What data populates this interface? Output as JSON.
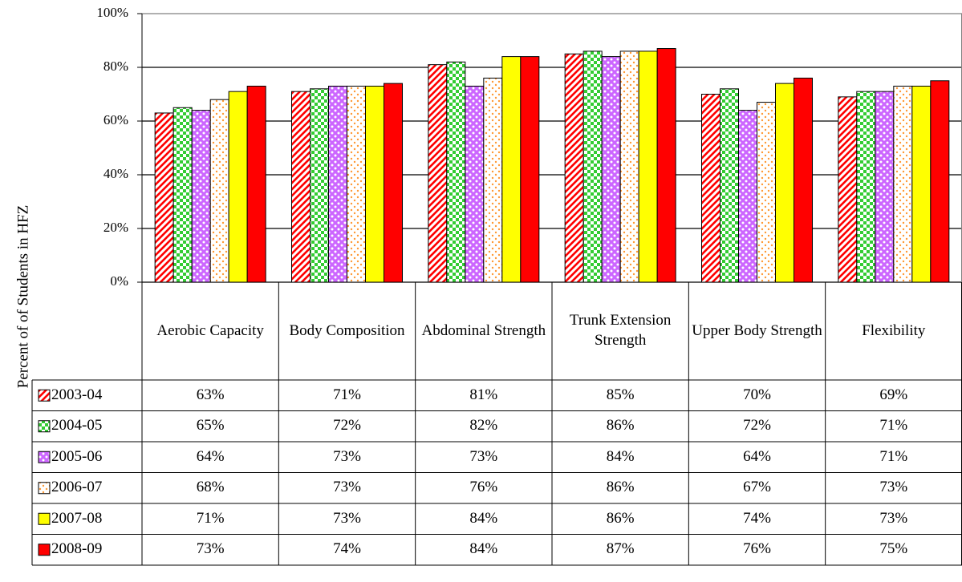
{
  "chart_data": {
    "type": "bar",
    "y_label": "Percent of of Students in HFZ",
    "categories": [
      "Aerobic Capacity",
      "Body Composition",
      "Abdominal Strength",
      "Trunk Extension Strength",
      "Upper Body Strength",
      "Flexibility"
    ],
    "series": [
      {
        "name": "2003-04",
        "color": "#ff0000",
        "values": [
          63,
          71,
          81,
          85,
          70,
          69
        ],
        "value_labels": [
          "63%",
          "71%",
          "81%",
          "85%",
          "70%",
          "69%"
        ]
      },
      {
        "name": "2004-05",
        "color": "#33cc33",
        "values": [
          65,
          72,
          82,
          86,
          72,
          71
        ],
        "value_labels": [
          "65%",
          "72%",
          "82%",
          "86%",
          "72%",
          "71%"
        ]
      },
      {
        "name": "2005-06",
        "color": "#cc66ff",
        "values": [
          64,
          73,
          73,
          84,
          64,
          71
        ],
        "value_labels": [
          "64%",
          "73%",
          "73%",
          "84%",
          "64%",
          "71%"
        ]
      },
      {
        "name": "2006-07",
        "color": "#ff9933",
        "values": [
          68,
          73,
          76,
          86,
          67,
          73
        ],
        "value_labels": [
          "68%",
          "73%",
          "76%",
          "86%",
          "67%",
          "73%"
        ]
      },
      {
        "name": "2007-08",
        "color": "#ffff00",
        "values": [
          71,
          73,
          84,
          86,
          74,
          73
        ],
        "value_labels": [
          "71%",
          "73%",
          "84%",
          "86%",
          "74%",
          "73%"
        ]
      },
      {
        "name": "2008-09",
        "color": "#ff0000",
        "values": [
          73,
          74,
          84,
          87,
          76,
          75
        ],
        "value_labels": [
          "73%",
          "74%",
          "84%",
          "87%",
          "76%",
          "75%"
        ]
      }
    ],
    "ylim": [
      0,
      100
    ],
    "yticks": [
      {
        "value": 0,
        "label": "0%"
      },
      {
        "value": 20,
        "label": "20%"
      },
      {
        "value": 40,
        "label": "40%"
      },
      {
        "value": 60,
        "label": "60%"
      },
      {
        "value": 80,
        "label": "80%"
      },
      {
        "value": 100,
        "label": "100%"
      }
    ],
    "grid": true
  }
}
